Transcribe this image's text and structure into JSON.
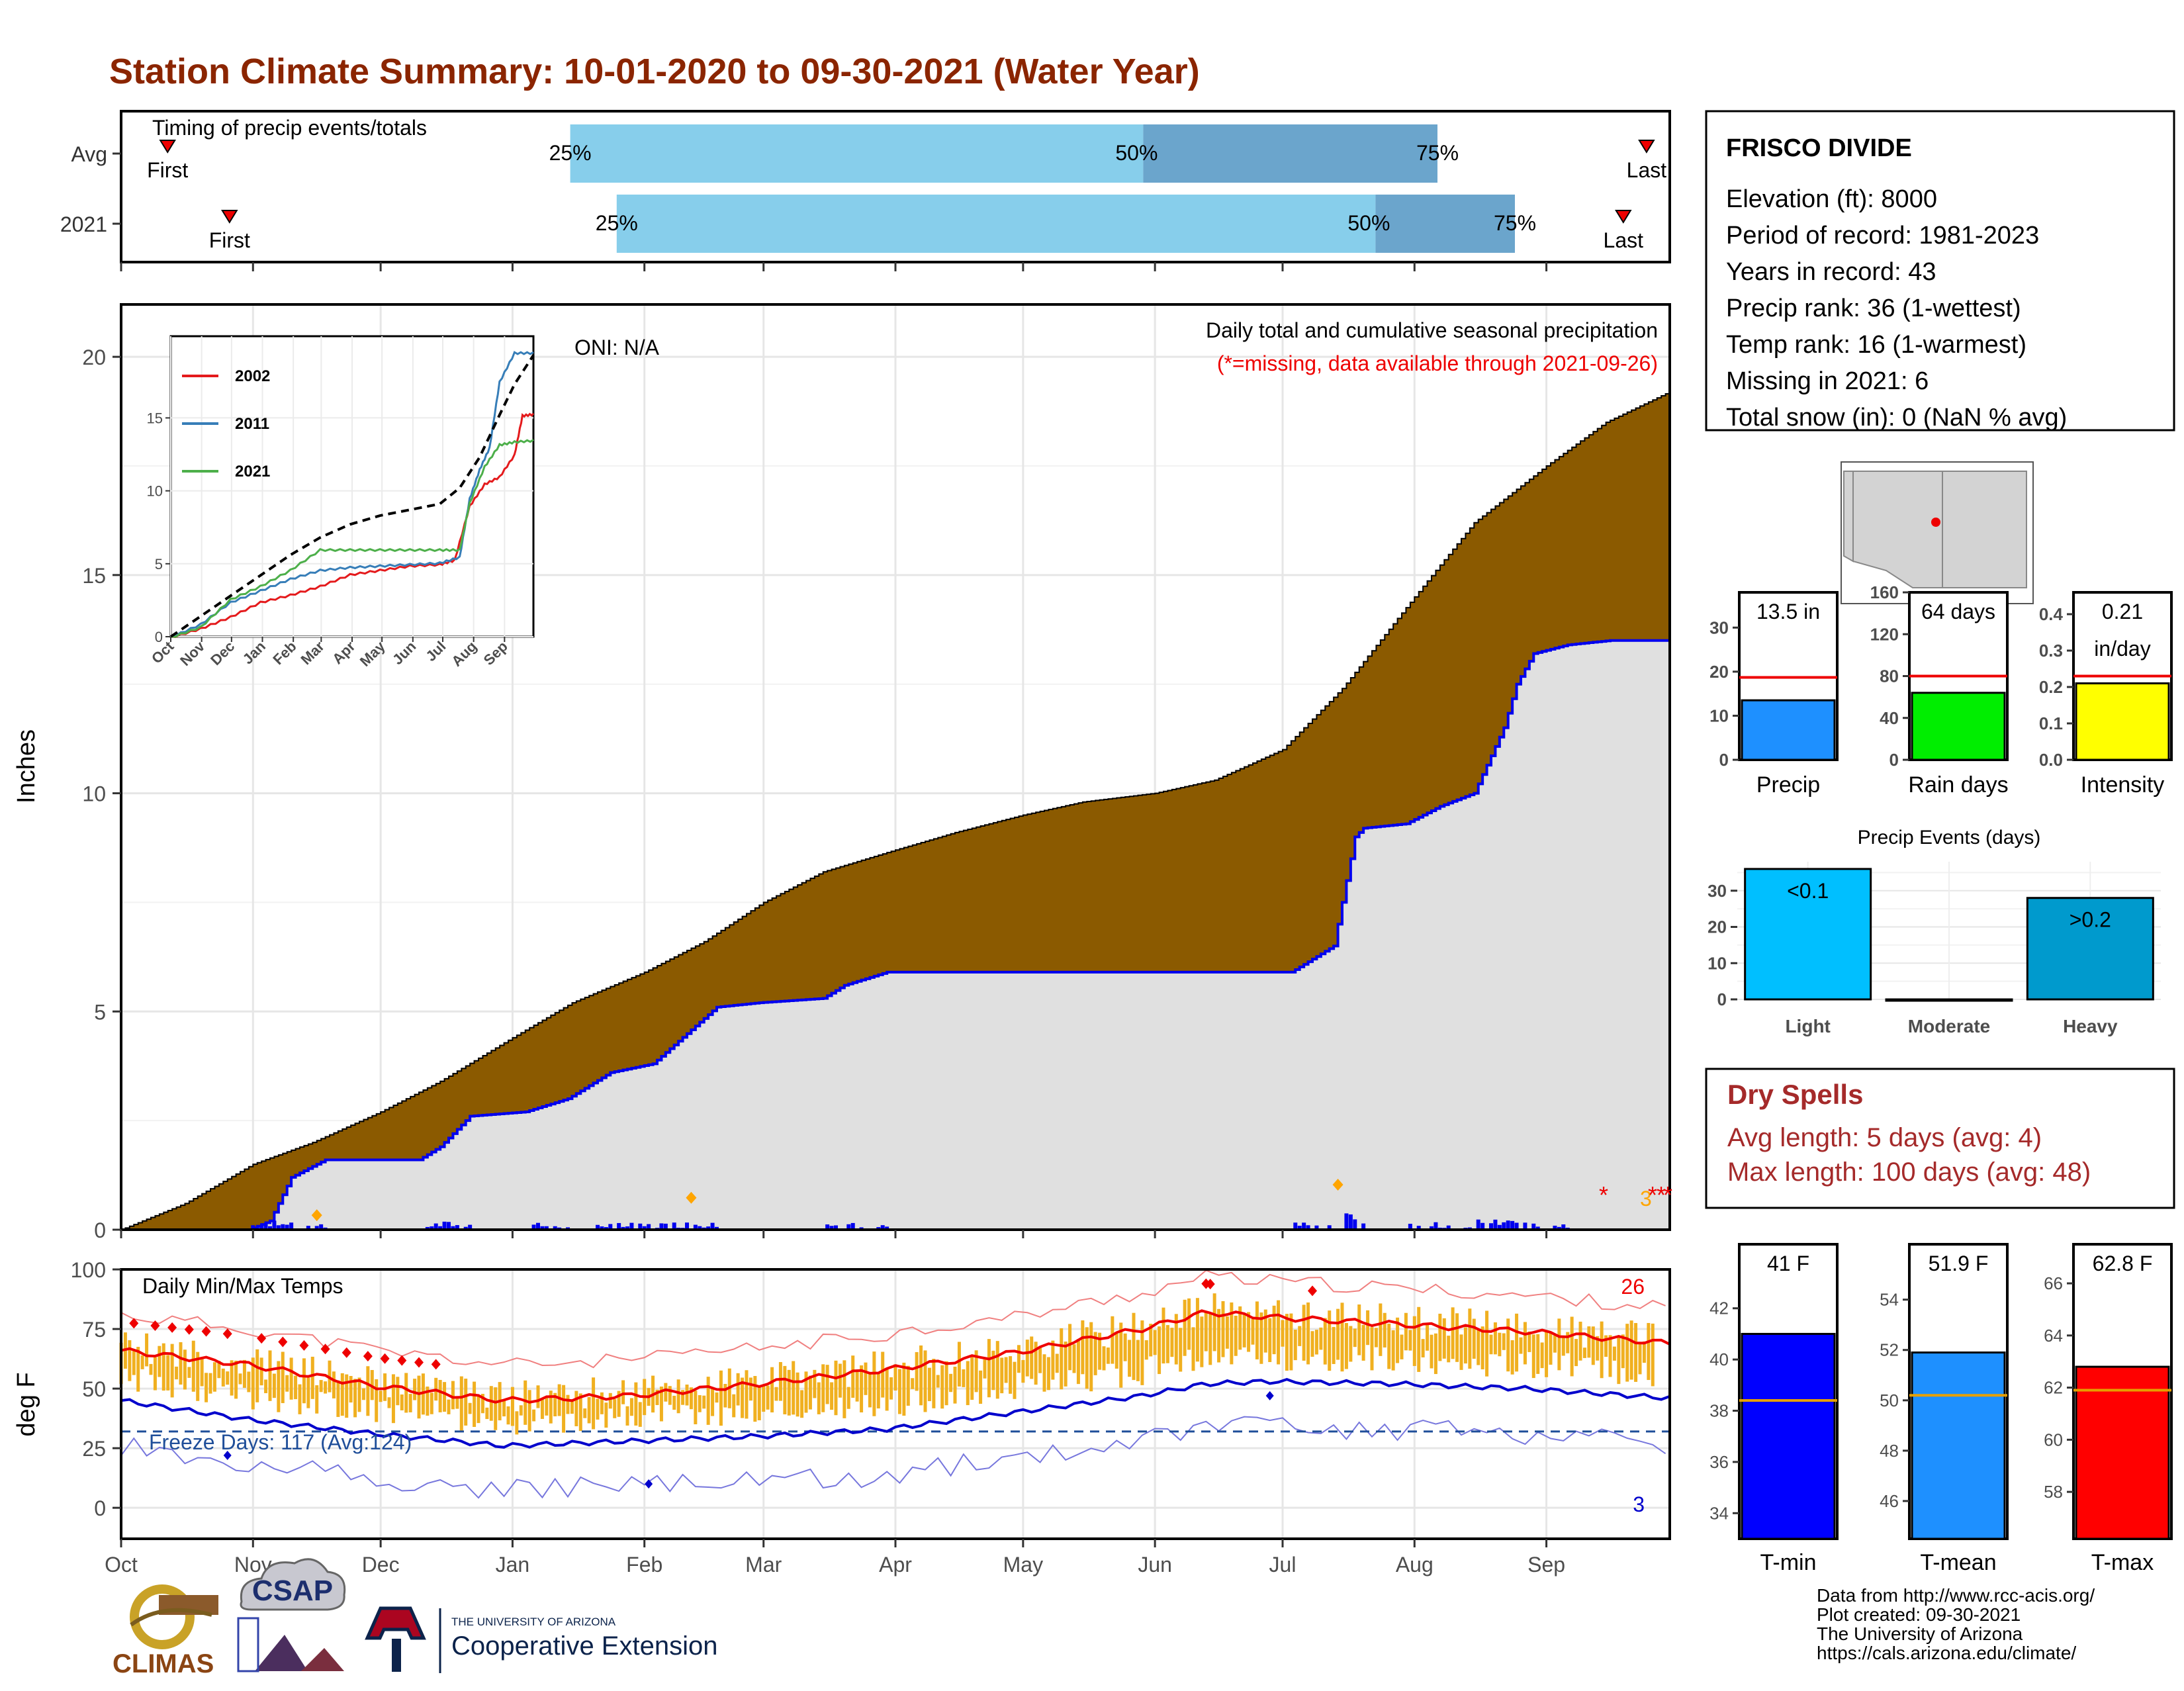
{
  "title": "Station Climate Summary: 10-01-2020 to 09-30-2021 (Water Year)",
  "colors": {
    "title": "#8B2500",
    "precip_fill": "#8B5A00",
    "avg_fill": "#E0E0E0",
    "cum_line": "#0000EE",
    "temp_bar": "#F0B020",
    "light_blue": "#87CEEB",
    "mid_blue": "#6BA5CC",
    "precip_bar": "#1E90FF",
    "raindays_bar": "#00EE00",
    "intensity_bar": "#FFFF00",
    "light_bar": "#00BFFF",
    "heavy_bar": "#009ACD",
    "tmin_bar": "#0000FF",
    "tmean_bar": "#1E90FF",
    "tmax_bar": "#FF0000",
    "dry_text": "#A52A2A"
  },
  "timing": {
    "label": "Timing of precip events/totals",
    "rows": [
      {
        "name": "Avg",
        "first_label": "First",
        "last_label": "Last",
        "first": 0.03,
        "q25": 0.29,
        "q50": 0.66,
        "q75": 0.85,
        "last": 0.985,
        "q25_label": "25%",
        "q50_label": "50%",
        "q75_label": "75%"
      },
      {
        "name": "2021",
        "first_label": "First",
        "last_label": "Last",
        "first": 0.07,
        "q25": 0.32,
        "q50": 0.81,
        "q75": 0.9,
        "last": 0.97,
        "q25_label": "25%",
        "q50_label": "50%",
        "q75_label": "75%"
      }
    ]
  },
  "precip_panel": {
    "ylabel": "Inches",
    "header": "Daily total and cumulative seasonal precipitation",
    "missing_note": "(*=missing, data available through 2021-09-26)",
    "oni": "ONI: N/A",
    "missing_count": "3"
  },
  "temp_panel": {
    "ylabel": "deg F",
    "header": "Daily Min/Max Temps",
    "freeze_days": "Freeze Days: 117 (Avg:124)",
    "record_high_count": "26",
    "record_low_count": "3"
  },
  "month_labels": [
    "Oct",
    "Nov",
    "Dec",
    "Jan",
    "Feb",
    "Mar",
    "Apr",
    "May",
    "Jun",
    "Jul",
    "Aug",
    "Sep"
  ],
  "station": {
    "name": "FRISCO DIVIDE",
    "lines": [
      "Elevation (ft): 8000",
      "Period of record: 1981-2023",
      "Years in record: 43",
      "Precip rank: 36 (1-wettest)",
      "Temp rank: 16 (1-warmest)",
      "Missing in 2021: 6",
      "Total snow (in): 0 (NaN % avg)"
    ]
  },
  "summary_bars": [
    {
      "name": "Precip",
      "value": 13.5,
      "avg": 18.7,
      "label": "13.5 in",
      "ymax": 38,
      "ticks": [
        0,
        10,
        20,
        30
      ],
      "color": "#1E90FF"
    },
    {
      "name": "Rain days",
      "value": 64,
      "avg": 80,
      "label": "64 days",
      "ymax": 160,
      "ticks": [
        0,
        40,
        80,
        120,
        160
      ],
      "color": "#00EE00"
    },
    {
      "name": "Intensity",
      "value": 0.21,
      "avg": 0.23,
      "label": "0.21",
      "label2": "in/day",
      "ymax": 0.46,
      "ticks": [
        0.0,
        0.1,
        0.2,
        0.3,
        0.4
      ],
      "color": "#FFFF00"
    }
  ],
  "precip_events": {
    "title": "Precip Events (days)",
    "ymax": 38,
    "ticks": [
      0,
      10,
      20,
      30
    ],
    "bars": [
      {
        "category": "Light",
        "value": 36,
        "label": "<0.1",
        "color": "#00BFFF"
      },
      {
        "category": "Moderate",
        "value": 0,
        "label": "",
        "color": "#00BFFF"
      },
      {
        "category": "Heavy",
        "value": 28,
        "label": ">0.2",
        "color": "#009ACD"
      }
    ]
  },
  "dry_spells": {
    "title": "Dry Spells",
    "avg_line": "Avg length: 5 days (avg: 4)",
    "max_line": "Max length: 100 days (avg: 48)"
  },
  "temp_bars": [
    {
      "name": "T-min",
      "value": 41,
      "avg": 38.4,
      "label": "41 F",
      "ymin": 33,
      "ymax": 44.5,
      "ticks": [
        34,
        36,
        38,
        40,
        42
      ],
      "color": "#0000FF"
    },
    {
      "name": "T-mean",
      "value": 51.9,
      "avg": 50.2,
      "label": "51.9 F",
      "ymin": 44.5,
      "ymax": 56.2,
      "ticks": [
        46,
        48,
        50,
        52,
        54
      ],
      "color": "#1E90FF"
    },
    {
      "name": "T-max",
      "value": 62.8,
      "avg": 61.9,
      "label": "62.8 F",
      "ymin": 56.2,
      "ymax": 67.5,
      "ticks": [
        58,
        60,
        62,
        64,
        66
      ],
      "color": "#FF0000"
    }
  ],
  "inset": {
    "series": [
      {
        "name": "2002",
        "color": "#E41A1C",
        "points": [
          [
            0,
            0
          ],
          [
            30,
            0.6
          ],
          [
            60,
            1.4
          ],
          [
            90,
            2.4
          ],
          [
            120,
            2.9
          ],
          [
            150,
            3.5
          ],
          [
            180,
            4.3
          ],
          [
            210,
            4.6
          ],
          [
            240,
            4.9
          ],
          [
            270,
            5.0
          ],
          [
            285,
            5.3
          ],
          [
            300,
            9.0
          ],
          [
            315,
            10.5
          ],
          [
            330,
            11.0
          ],
          [
            345,
            12.5
          ],
          [
            353,
            15.2
          ],
          [
            364,
            15.3
          ]
        ]
      },
      {
        "name": "2011",
        "color": "#377EB8",
        "points": [
          [
            0,
            0
          ],
          [
            30,
            0.9
          ],
          [
            60,
            2.4
          ],
          [
            90,
            3.2
          ],
          [
            120,
            4.0
          ],
          [
            150,
            4.6
          ],
          [
            180,
            4.8
          ],
          [
            210,
            4.9
          ],
          [
            240,
            5.0
          ],
          [
            270,
            5.1
          ],
          [
            290,
            5.5
          ],
          [
            300,
            9.5
          ],
          [
            310,
            11.5
          ],
          [
            320,
            13.0
          ],
          [
            330,
            17.5
          ],
          [
            345,
            19.5
          ],
          [
            364,
            19.5
          ]
        ]
      },
      {
        "name": "2021",
        "color": "#4DAF4A",
        "points": [
          [
            0,
            0
          ],
          [
            30,
            0.7
          ],
          [
            60,
            2.6
          ],
          [
            90,
            3.5
          ],
          [
            120,
            4.6
          ],
          [
            150,
            6.0
          ],
          [
            180,
            6.0
          ],
          [
            210,
            6.0
          ],
          [
            240,
            6.0
          ],
          [
            270,
            6.0
          ],
          [
            290,
            6.0
          ],
          [
            300,
            9.2
          ],
          [
            315,
            11.7
          ],
          [
            330,
            13.2
          ],
          [
            345,
            13.4
          ],
          [
            364,
            13.5
          ]
        ]
      },
      {
        "name": "",
        "color": "#000000",
        "points": [
          [
            0,
            0
          ],
          [
            30,
            1.4
          ],
          [
            60,
            2.8
          ],
          [
            90,
            4.2
          ],
          [
            120,
            5.6
          ],
          [
            150,
            6.8
          ],
          [
            180,
            7.7
          ],
          [
            210,
            8.3
          ],
          [
            240,
            8.7
          ],
          [
            270,
            9.1
          ],
          [
            290,
            10.2
          ],
          [
            310,
            12.3
          ],
          [
            330,
            15.2
          ],
          [
            345,
            17.3
          ],
          [
            364,
            19.3
          ]
        ]
      }
    ],
    "yticks": [
      0,
      5,
      10,
      15
    ],
    "xlabels": [
      "Oct",
      "Nov",
      "Dec",
      "Jan",
      "Feb",
      "Mar",
      "Apr",
      "May",
      "Jun",
      "Jul",
      "Aug",
      "Sep"
    ]
  },
  "logos": {
    "climas": "CLIMAS",
    "csap": "CSAP",
    "ua_small": "THE UNIVERSITY OF ARIZONA",
    "ua_big": "Cooperative Extension"
  },
  "credits": [
    "Data from http://www.rcc-acis.org/",
    "Plot created: 09-30-2021",
    "The University of Arizona",
    "https://cals.arizona.edu/climate/"
  ],
  "chart_data": [
    {
      "type": "area",
      "title": "Daily total and cumulative seasonal precipitation",
      "ylabel": "Inches",
      "ylim": [
        0,
        21.2
      ],
      "x_unit": "day of water year",
      "series": [
        {
          "name": "Average cumulative",
          "x": [
            0,
            15,
            31,
            45,
            61,
            75,
            92,
            106,
            123,
            137,
            151,
            165,
            182,
            196,
            212,
            226,
            243,
            257,
            273,
            287,
            304,
            318,
            335,
            349,
            364
          ],
          "values": [
            0,
            0.6,
            1.5,
            2.0,
            2.7,
            3.4,
            4.4,
            5.2,
            5.9,
            6.6,
            7.5,
            8.2,
            8.7,
            9.1,
            9.5,
            9.8,
            10.0,
            10.3,
            11.0,
            12.4,
            14.5,
            16.2,
            17.5,
            18.5,
            19.2
          ]
        },
        {
          "name": "2021 cumulative",
          "x": [
            0,
            30,
            35,
            40,
            48,
            70,
            75,
            82,
            95,
            105,
            115,
            125,
            140,
            150,
            165,
            170,
            180,
            200,
            230,
            250,
            260,
            275,
            285,
            287,
            290,
            292,
            302,
            310,
            318,
            325,
            328,
            332,
            340,
            350,
            364
          ],
          "values": [
            0,
            0,
            0.2,
            1.2,
            1.6,
            1.6,
            1.9,
            2.6,
            2.7,
            3.0,
            3.6,
            3.8,
            5.1,
            5.2,
            5.3,
            5.6,
            5.9,
            5.9,
            5.9,
            5.9,
            5.9,
            5.9,
            6.5,
            7.5,
            9.0,
            9.2,
            9.3,
            9.7,
            10.0,
            11.5,
            12.5,
            13.2,
            13.4,
            13.5,
            13.5
          ]
        }
      ]
    },
    {
      "type": "line",
      "title": "Daily Min/Max Temps",
      "ylabel": "deg F",
      "ylim": [
        -13,
        100
      ],
      "series": [
        {
          "name": "Avg max",
          "x": [
            0,
            30,
            60,
            90,
            120,
            150,
            180,
            210,
            240,
            255,
            270,
            300,
            330,
            364
          ],
          "values": [
            66,
            60,
            51,
            45,
            47,
            52,
            58,
            65,
            75,
            82,
            80,
            77,
            74,
            69
          ]
        },
        {
          "name": "Avg min",
          "x": [
            0,
            30,
            60,
            90,
            120,
            150,
            180,
            210,
            240,
            255,
            270,
            300,
            330,
            364
          ],
          "values": [
            45,
            37,
            31,
            26,
            28,
            30,
            33,
            40,
            47,
            52,
            53,
            52,
            50,
            46
          ]
        }
      ],
      "freeze_line": 32
    },
    {
      "type": "bar",
      "title": "Timing of precip events/totals",
      "categories": [
        "Avg",
        "2021"
      ]
    }
  ]
}
